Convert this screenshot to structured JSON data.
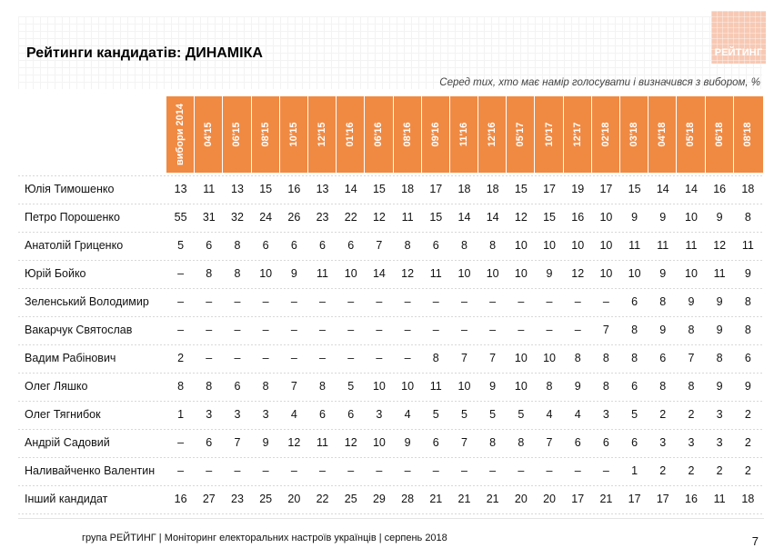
{
  "title": "Рейтинги кандидатів: ДИНАМІКА",
  "subtitle": "Серед тих, хто має намір голосувати і визначився з вибором, %",
  "logo_text": "РЕЙТИНГ",
  "accent_color": "#f08a43",
  "columns": [
    "вибори 2014",
    "04'15",
    "06'15",
    "08'15",
    "10'15",
    "12'15",
    "01'16",
    "06'16",
    "08'16",
    "09'16",
    "11'16",
    "12'16",
    "05'17",
    "10'17",
    "12'17",
    "02'18",
    "03'18",
    "04'18",
    "05'18",
    "06'18",
    "08'18"
  ],
  "rows": [
    {
      "name": "Юлія Тимошенко",
      "values": [
        "13",
        "11",
        "13",
        "15",
        "16",
        "13",
        "14",
        "15",
        "18",
        "17",
        "18",
        "18",
        "15",
        "17",
        "19",
        "17",
        "15",
        "14",
        "14",
        "16",
        "18"
      ]
    },
    {
      "name": "Петро Порошенко",
      "values": [
        "55",
        "31",
        "32",
        "24",
        "26",
        "23",
        "22",
        "12",
        "11",
        "15",
        "14",
        "14",
        "12",
        "15",
        "16",
        "10",
        "9",
        "9",
        "10",
        "9",
        "8"
      ]
    },
    {
      "name": "Анатолій Гриценко",
      "values": [
        "5",
        "6",
        "8",
        "6",
        "6",
        "6",
        "6",
        "7",
        "8",
        "6",
        "8",
        "8",
        "10",
        "10",
        "10",
        "10",
        "11",
        "11",
        "11",
        "12",
        "11"
      ]
    },
    {
      "name": "Юрій Бойко",
      "values": [
        "–",
        "8",
        "8",
        "10",
        "9",
        "11",
        "10",
        "14",
        "12",
        "11",
        "10",
        "10",
        "10",
        "9",
        "12",
        "10",
        "10",
        "9",
        "10",
        "11",
        "9"
      ]
    },
    {
      "name": "Зеленський Володимир",
      "values": [
        "–",
        "–",
        "–",
        "–",
        "–",
        "–",
        "–",
        "–",
        "–",
        "–",
        "–",
        "–",
        "–",
        "–",
        "–",
        "–",
        "6",
        "8",
        "9",
        "9",
        "8"
      ]
    },
    {
      "name": "Вакарчук Святослав",
      "values": [
        "–",
        "–",
        "–",
        "–",
        "–",
        "–",
        "–",
        "–",
        "–",
        "–",
        "–",
        "–",
        "–",
        "–",
        "–",
        "7",
        "8",
        "9",
        "8",
        "9",
        "8"
      ]
    },
    {
      "name": "Вадим Рабінович",
      "values": [
        "2",
        "–",
        "–",
        "–",
        "–",
        "–",
        "–",
        "–",
        "–",
        "8",
        "7",
        "7",
        "10",
        "10",
        "8",
        "8",
        "8",
        "6",
        "7",
        "8",
        "6"
      ]
    },
    {
      "name": "Олег Ляшко",
      "values": [
        "8",
        "8",
        "6",
        "8",
        "7",
        "8",
        "5",
        "10",
        "10",
        "11",
        "10",
        "9",
        "10",
        "8",
        "9",
        "8",
        "6",
        "8",
        "8",
        "9",
        "9"
      ]
    },
    {
      "name": "Олег Тягнибок",
      "values": [
        "1",
        "3",
        "3",
        "3",
        "4",
        "6",
        "6",
        "3",
        "4",
        "5",
        "5",
        "5",
        "5",
        "4",
        "4",
        "3",
        "5",
        "2",
        "2",
        "3",
        "2"
      ]
    },
    {
      "name": "Андрій Садовий",
      "values": [
        "–",
        "6",
        "7",
        "9",
        "12",
        "11",
        "12",
        "10",
        "9",
        "6",
        "7",
        "8",
        "8",
        "7",
        "6",
        "6",
        "6",
        "3",
        "3",
        "3",
        "2"
      ]
    },
    {
      "name": "Наливайченко Валентин",
      "values": [
        "–",
        "–",
        "–",
        "–",
        "–",
        "–",
        "–",
        "–",
        "–",
        "–",
        "–",
        "–",
        "–",
        "–",
        "–",
        "–",
        "1",
        "2",
        "2",
        "2",
        "2"
      ]
    },
    {
      "name": "Інший кандидат",
      "values": [
        "16",
        "27",
        "23",
        "25",
        "20",
        "22",
        "25",
        "29",
        "28",
        "21",
        "21",
        "21",
        "20",
        "20",
        "17",
        "21",
        "17",
        "17",
        "16",
        "11",
        "18"
      ]
    }
  ],
  "footer": "група РЕЙТИНГ |  Моніторинг електоральних настроїв українців | серпень  2018",
  "page_number": "7"
}
